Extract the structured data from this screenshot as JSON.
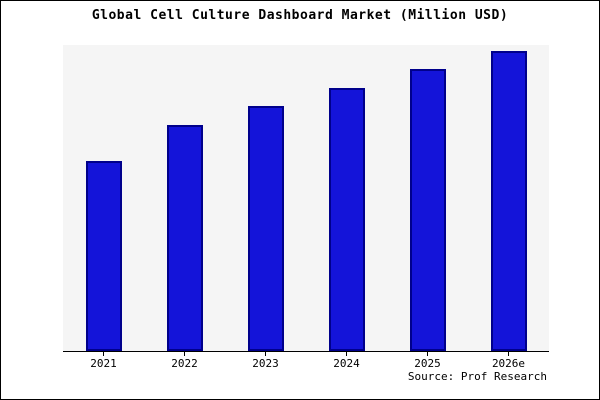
{
  "title": "Global Cell Culture Dashboard Market (Million USD)",
  "source": "Source: Prof Research",
  "chart_data": {
    "type": "bar",
    "title": "Global Cell Culture Dashboard Market (Million USD)",
    "categories": [
      "2021",
      "2022",
      "2023",
      "2024",
      "2025",
      "2026e"
    ],
    "values": [
      62,
      74,
      80,
      86,
      92,
      98
    ],
    "xlabel": "",
    "ylabel": "",
    "ylim": [
      0,
      100
    ],
    "grid": false,
    "legend": false,
    "bar_color": "#1414d9",
    "bar_edge_color": "#00008b",
    "plot_background": "#f5f5f5",
    "source_label": "Source: Prof Research"
  }
}
